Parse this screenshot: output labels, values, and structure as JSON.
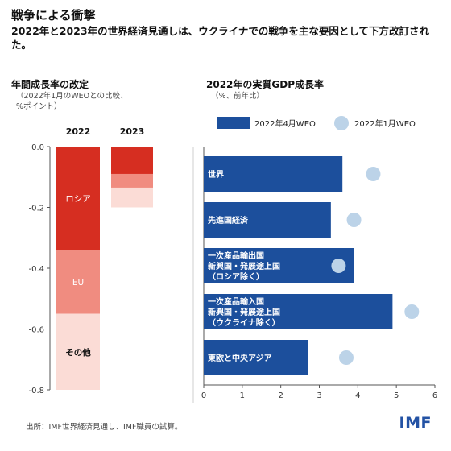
{
  "title": "戦争による衝撃",
  "subtitle": "2022年と2023年の世界経済見通しは、ウクライナでの戦争を主な要因として下方改訂された。",
  "source": "出所：IMF世界経済見通し、IMF職員の試算。",
  "logo": "IMF",
  "colors": {
    "russia": "#d62e21",
    "eu": "#f08c80",
    "other": "#fbdcd6",
    "apr": "#1c4f9c",
    "jan": "#bcd3e8"
  },
  "chart_data": [
    {
      "type": "bar",
      "title": "年間成長率の改定",
      "subtitle": "（2022年1月のWEOとの比較、\n%ポイント）",
      "categories": [
        "2022",
        "2023"
      ],
      "series": [
        {
          "name": "ロシア",
          "values": [
            -0.34,
            -0.09
          ]
        },
        {
          "name": "EU",
          "values": [
            -0.21,
            -0.045
          ]
        },
        {
          "name": "その他",
          "values": [
            -0.25,
            -0.065
          ]
        }
      ],
      "ylim": [
        -0.8,
        0.0
      ],
      "yticks": [
        "0.0",
        "-0.2",
        "-0.4",
        "-0.6",
        "-0.8"
      ]
    },
    {
      "type": "bar",
      "title": "2022年の実質GDP成長率",
      "subtitle": "（%、前年比）",
      "categories": [
        "世界",
        "先進国経済",
        "一次産品輸出国\n新興国・発展途上国\n（ロシア除く）",
        "一次産品輸入国\n新興国・発展途上国\n（ウクライナ除く）",
        "東欧と中央アジア"
      ],
      "series": [
        {
          "name": "2022年4月WEO",
          "values": [
            3.6,
            3.3,
            3.9,
            4.9,
            2.7
          ]
        },
        {
          "name": "2022年1月WEO",
          "values": [
            4.4,
            3.9,
            3.5,
            5.4,
            3.7
          ]
        }
      ],
      "xlim": [
        0,
        6
      ],
      "xticks": [
        "0",
        "1",
        "2",
        "3",
        "4",
        "5",
        "6"
      ],
      "legend": "top"
    }
  ]
}
